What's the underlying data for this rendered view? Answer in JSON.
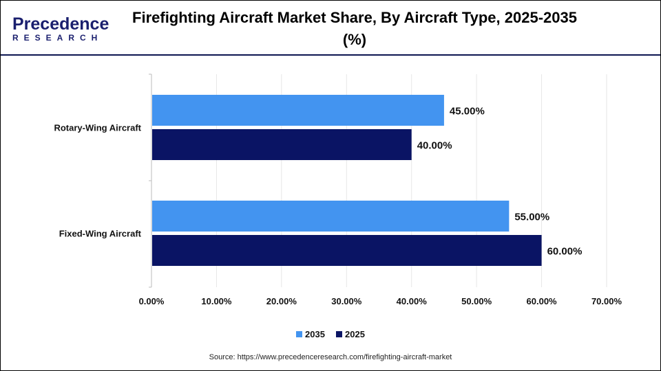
{
  "logo": {
    "line1": "Precedence",
    "line2": "RESEARCH"
  },
  "header": {
    "title": "Firefighting Aircraft Market Share, By Aircraft Type, 2025-2035 (%)"
  },
  "source": "Source: https://www.precedenceresearch.com/firefighting-aircraft-market",
  "chart_data": {
    "type": "bar",
    "orientation": "horizontal",
    "title": "Firefighting Aircraft Market Share, By Aircraft Type, 2025-2035 (%)",
    "categories": [
      "Rotary-Wing Aircraft",
      "Fixed-Wing Aircraft"
    ],
    "series": [
      {
        "name": "2035",
        "values": [
          45,
          55
        ],
        "labels": [
          "45.00%",
          "55.00%"
        ],
        "color": "#4394f0"
      },
      {
        "name": "2025",
        "values": [
          40,
          60
        ],
        "labels": [
          "40.00%",
          "60.00%"
        ],
        "color": "#0a1464"
      }
    ],
    "xlim": [
      0,
      70
    ],
    "xticks": [
      "0.00%",
      "10.00%",
      "20.00%",
      "30.00%",
      "40.00%",
      "50.00%",
      "60.00%",
      "70.00%"
    ],
    "grid": true,
    "legend": "bottom-center"
  }
}
